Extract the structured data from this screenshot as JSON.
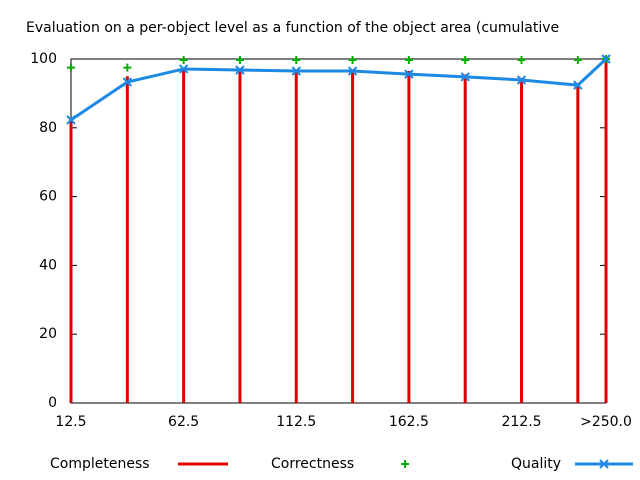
{
  "chart_data": {
    "type": "line",
    "title": "Evaluation on a per-object level as a function of the object area (cumulative",
    "x": [
      12.5,
      37.5,
      62.5,
      87.5,
      112.5,
      137.5,
      162.5,
      187.5,
      212.5,
      237.5,
      250
    ],
    "xlim": [
      12.5,
      250
    ],
    "xticks": [
      12.5,
      62.5,
      112.5,
      162.5,
      212.5,
      {
        "value": 250,
        "label": ">250.0"
      }
    ],
    "ylim": [
      0,
      100
    ],
    "yticks": [
      0,
      20,
      40,
      60,
      80,
      100
    ],
    "series": [
      {
        "name": "Completeness",
        "color": "#e00000",
        "style": "impulses",
        "values": [
          83,
          95,
          97.5,
          97,
          97,
          97,
          96.5,
          95.5,
          94.5,
          93,
          100
        ]
      },
      {
        "name": "Correctness",
        "color": "#00b000",
        "style": "points",
        "values": [
          97.5,
          97.5,
          99.7,
          99.7,
          99.7,
          99.7,
          99.7,
          99.7,
          99.7,
          99.7,
          100
        ]
      },
      {
        "name": "Quality",
        "color": "#1e88e5",
        "style": "linespoints",
        "values": [
          82.3,
          93.3,
          97.1,
          96.8,
          96.5,
          96.5,
          95.6,
          94.8,
          93.9,
          92.4,
          100
        ]
      }
    ]
  }
}
